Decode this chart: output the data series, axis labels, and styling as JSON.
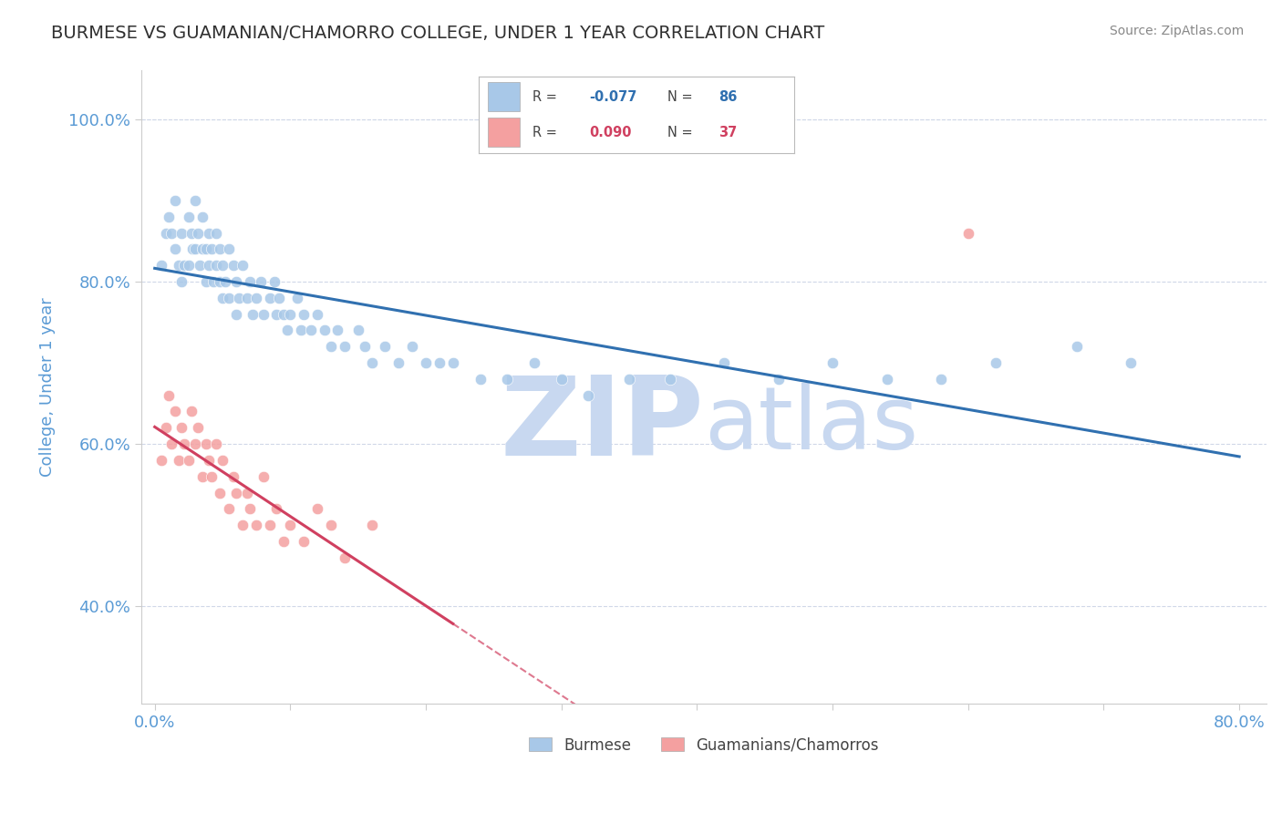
{
  "title": "BURMESE VS GUAMANIAN/CHAMORRO COLLEGE, UNDER 1 YEAR CORRELATION CHART",
  "source_text": "Source: ZipAtlas.com",
  "xlabel": "",
  "ylabel": "College, Under 1 year",
  "xlim": [
    -0.01,
    0.82
  ],
  "ylim": [
    0.28,
    1.06
  ],
  "xticks": [
    0.0,
    0.1,
    0.2,
    0.3,
    0.4,
    0.5,
    0.6,
    0.7,
    0.8
  ],
  "xticklabels": [
    "0.0%",
    "",
    "",
    "",
    "",
    "",
    "",
    "",
    "80.0%"
  ],
  "yticks": [
    0.4,
    0.6,
    0.8,
    1.0
  ],
  "yticklabels": [
    "40.0%",
    "60.0%",
    "80.0%",
    "100.0%"
  ],
  "legend_labels": [
    "Burmese",
    "Guamanians/Chamorros"
  ],
  "burmese_R": -0.077,
  "burmese_N": 86,
  "guam_R": 0.09,
  "guam_N": 37,
  "blue_color": "#a8c8e8",
  "pink_color": "#f4a0a0",
  "blue_line_color": "#3070b0",
  "pink_line_color": "#d04060",
  "grid_color": "#d0d8e8",
  "background_color": "#ffffff",
  "watermark_zip": "ZIP",
  "watermark_atlas": "atlas",
  "watermark_color": "#c8d8f0",
  "title_color": "#303030",
  "tick_label_color": "#5b9bd5",
  "burmese_x": [
    0.005,
    0.008,
    0.01,
    0.012,
    0.015,
    0.015,
    0.018,
    0.02,
    0.02,
    0.022,
    0.025,
    0.025,
    0.027,
    0.028,
    0.03,
    0.03,
    0.032,
    0.033,
    0.035,
    0.035,
    0.038,
    0.038,
    0.04,
    0.04,
    0.042,
    0.043,
    0.045,
    0.045,
    0.048,
    0.048,
    0.05,
    0.05,
    0.052,
    0.055,
    0.055,
    0.058,
    0.06,
    0.06,
    0.062,
    0.065,
    0.068,
    0.07,
    0.072,
    0.075,
    0.078,
    0.08,
    0.085,
    0.088,
    0.09,
    0.092,
    0.095,
    0.098,
    0.1,
    0.105,
    0.108,
    0.11,
    0.115,
    0.12,
    0.125,
    0.13,
    0.135,
    0.14,
    0.15,
    0.155,
    0.16,
    0.17,
    0.18,
    0.19,
    0.2,
    0.21,
    0.22,
    0.24,
    0.26,
    0.28,
    0.3,
    0.32,
    0.35,
    0.38,
    0.42,
    0.46,
    0.5,
    0.54,
    0.58,
    0.62,
    0.68,
    0.72
  ],
  "burmese_y": [
    0.82,
    0.86,
    0.88,
    0.86,
    0.84,
    0.9,
    0.82,
    0.8,
    0.86,
    0.82,
    0.88,
    0.82,
    0.86,
    0.84,
    0.9,
    0.84,
    0.86,
    0.82,
    0.84,
    0.88,
    0.8,
    0.84,
    0.82,
    0.86,
    0.84,
    0.8,
    0.82,
    0.86,
    0.8,
    0.84,
    0.82,
    0.78,
    0.8,
    0.84,
    0.78,
    0.82,
    0.8,
    0.76,
    0.78,
    0.82,
    0.78,
    0.8,
    0.76,
    0.78,
    0.8,
    0.76,
    0.78,
    0.8,
    0.76,
    0.78,
    0.76,
    0.74,
    0.76,
    0.78,
    0.74,
    0.76,
    0.74,
    0.76,
    0.74,
    0.72,
    0.74,
    0.72,
    0.74,
    0.72,
    0.7,
    0.72,
    0.7,
    0.72,
    0.7,
    0.7,
    0.7,
    0.68,
    0.68,
    0.7,
    0.68,
    0.66,
    0.68,
    0.68,
    0.7,
    0.68,
    0.7,
    0.68,
    0.68,
    0.7,
    0.72,
    0.7
  ],
  "guam_x": [
    0.005,
    0.008,
    0.01,
    0.012,
    0.015,
    0.018,
    0.02,
    0.022,
    0.025,
    0.027,
    0.03,
    0.032,
    0.035,
    0.038,
    0.04,
    0.042,
    0.045,
    0.048,
    0.05,
    0.055,
    0.058,
    0.06,
    0.065,
    0.068,
    0.07,
    0.075,
    0.08,
    0.085,
    0.09,
    0.095,
    0.1,
    0.11,
    0.12,
    0.13,
    0.14,
    0.16,
    0.6
  ],
  "guam_y": [
    0.58,
    0.62,
    0.66,
    0.6,
    0.64,
    0.58,
    0.62,
    0.6,
    0.58,
    0.64,
    0.6,
    0.62,
    0.56,
    0.6,
    0.58,
    0.56,
    0.6,
    0.54,
    0.58,
    0.52,
    0.56,
    0.54,
    0.5,
    0.54,
    0.52,
    0.5,
    0.56,
    0.5,
    0.52,
    0.48,
    0.5,
    0.48,
    0.52,
    0.5,
    0.46,
    0.5,
    0.86
  ]
}
